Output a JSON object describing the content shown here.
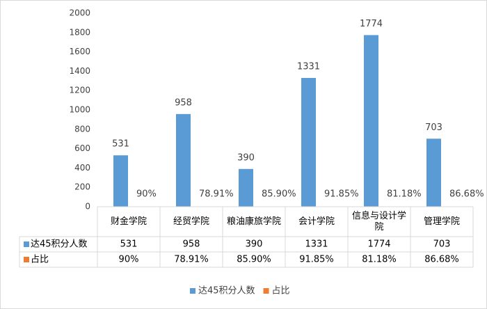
{
  "chart_data": {
    "type": "bar",
    "categories": [
      "财金学院",
      "经贸学院",
      "粮油康旅学院",
      "会计学院",
      "信息与设计学院",
      "管理学院"
    ],
    "series": [
      {
        "name": "达45积分人数",
        "color": "#5b9bd5",
        "values": [
          531,
          958,
          390,
          1331,
          1774,
          703
        ]
      },
      {
        "name": "占比",
        "color": "#ed7d31",
        "values": [
          0.9,
          0.7891,
          0.859,
          0.9185,
          0.8118,
          0.8668
        ],
        "value_labels": [
          "90%",
          "78.91%",
          "85.90%",
          "91.85%",
          "81.18%",
          "86.68%"
        ]
      }
    ],
    "ylim": [
      0,
      2000
    ],
    "yticks": [
      0,
      200,
      400,
      600,
      800,
      1000,
      1200,
      1400,
      1600,
      1800,
      2000
    ],
    "grid": false,
    "legend": "bottom",
    "data_table": true
  }
}
